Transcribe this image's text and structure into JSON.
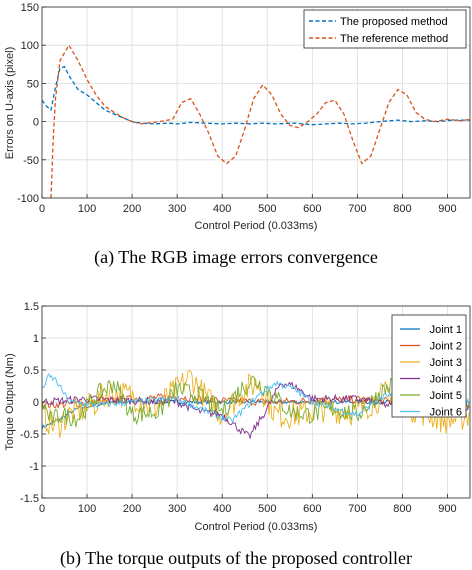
{
  "chart_data": [
    {
      "type": "line",
      "caption": "(a) The RGB image errors convergence",
      "xlabel": "Control Period (0.033ms)",
      "ylabel": "Errors on U-axis (pixel)",
      "xlim": [
        0,
        950
      ],
      "ylim": [
        -100,
        150
      ],
      "xticks": [
        0,
        100,
        200,
        300,
        400,
        500,
        600,
        700,
        800,
        900
      ],
      "yticks": [
        -100,
        -50,
        0,
        50,
        100,
        150
      ],
      "grid": true,
      "legend_position": "top-right",
      "series": [
        {
          "name": "The proposed method",
          "color": "#0072BD",
          "style": "dashed",
          "points": [
            [
              0,
              28
            ],
            [
              10,
              20
            ],
            [
              20,
              15
            ],
            [
              30,
              45
            ],
            [
              40,
              70
            ],
            [
              50,
              72
            ],
            [
              60,
              60
            ],
            [
              80,
              42
            ],
            [
              100,
              35
            ],
            [
              120,
              25
            ],
            [
              140,
              15
            ],
            [
              160,
              10
            ],
            [
              180,
              5
            ],
            [
              200,
              0
            ],
            [
              220,
              -2
            ],
            [
              250,
              -3
            ],
            [
              280,
              -2
            ],
            [
              300,
              -3
            ],
            [
              330,
              -1
            ],
            [
              360,
              -2
            ],
            [
              400,
              -3
            ],
            [
              430,
              -2
            ],
            [
              460,
              -3
            ],
            [
              490,
              -2
            ],
            [
              520,
              -3
            ],
            [
              560,
              -2
            ],
            [
              600,
              -4
            ],
            [
              630,
              -3
            ],
            [
              660,
              -2
            ],
            [
              690,
              -3
            ],
            [
              720,
              -2
            ],
            [
              750,
              0
            ],
            [
              790,
              2
            ],
            [
              820,
              0
            ],
            [
              850,
              1
            ],
            [
              880,
              0
            ],
            [
              910,
              2
            ],
            [
              940,
              2
            ],
            [
              950,
              2
            ]
          ]
        },
        {
          "name": "The reference method",
          "color": "#D95319",
          "style": "dashed",
          "points": [
            [
              20,
              -100
            ],
            [
              25,
              -20
            ],
            [
              30,
              30
            ],
            [
              40,
              80
            ],
            [
              60,
              100
            ],
            [
              80,
              80
            ],
            [
              100,
              55
            ],
            [
              120,
              35
            ],
            [
              140,
              20
            ],
            [
              160,
              12
            ],
            [
              180,
              5
            ],
            [
              200,
              0
            ],
            [
              220,
              -3
            ],
            [
              260,
              0
            ],
            [
              290,
              3
            ],
            [
              310,
              25
            ],
            [
              330,
              30
            ],
            [
              350,
              10
            ],
            [
              370,
              -15
            ],
            [
              390,
              -45
            ],
            [
              410,
              -55
            ],
            [
              430,
              -45
            ],
            [
              450,
              -10
            ],
            [
              470,
              30
            ],
            [
              490,
              48
            ],
            [
              510,
              35
            ],
            [
              530,
              10
            ],
            [
              550,
              -5
            ],
            [
              570,
              -8
            ],
            [
              590,
              0
            ],
            [
              610,
              10
            ],
            [
              630,
              25
            ],
            [
              650,
              28
            ],
            [
              670,
              10
            ],
            [
              690,
              -25
            ],
            [
              710,
              -55
            ],
            [
              730,
              -45
            ],
            [
              750,
              -10
            ],
            [
              770,
              25
            ],
            [
              790,
              42
            ],
            [
              810,
              35
            ],
            [
              830,
              12
            ],
            [
              850,
              3
            ],
            [
              870,
              0
            ],
            [
              900,
              3
            ],
            [
              930,
              1
            ],
            [
              950,
              3
            ]
          ]
        }
      ]
    },
    {
      "type": "line",
      "caption": "(b) The torque outputs of the proposed controller",
      "xlabel": "Control Period (0.033ms)",
      "ylabel": "Torque Output (Nm)",
      "xlim": [
        0,
        950
      ],
      "ylim": [
        -1.5,
        1.5
      ],
      "xticks": [
        0,
        100,
        200,
        300,
        400,
        500,
        600,
        700,
        800,
        900
      ],
      "yticks": [
        -1.5,
        -1,
        -0.5,
        0,
        0.5,
        1,
        1.5
      ],
      "grid": true,
      "legend_position": "top-right",
      "series": [
        {
          "name": "Joint 1",
          "color": "#0072BD",
          "base": [
            [
              0,
              -0.4
            ],
            [
              30,
              -0.3
            ],
            [
              80,
              -0.1
            ],
            [
              150,
              0.0
            ],
            [
              300,
              0.0
            ],
            [
              600,
              0.0
            ],
            [
              950,
              0.0
            ]
          ],
          "amp": 0.03
        },
        {
          "name": "Joint 2",
          "color": "#D95319",
          "base": [
            [
              0,
              -0.05
            ],
            [
              100,
              -0.02
            ],
            [
              200,
              0.05
            ],
            [
              300,
              0.08
            ],
            [
              400,
              0.02
            ],
            [
              500,
              0.0
            ],
            [
              600,
              0.02
            ],
            [
              700,
              0.04
            ],
            [
              800,
              0.0
            ],
            [
              950,
              -0.05
            ]
          ],
          "amp": 0.06
        },
        {
          "name": "Joint 3",
          "color": "#EDB120",
          "base": [
            [
              0,
              -0.2
            ],
            [
              30,
              -0.4
            ],
            [
              60,
              -0.2
            ],
            [
              100,
              -0.1
            ],
            [
              150,
              0.15
            ],
            [
              200,
              0.1
            ],
            [
              250,
              -0.1
            ],
            [
              300,
              0.2
            ],
            [
              330,
              0.4
            ],
            [
              360,
              0.1
            ],
            [
              400,
              -0.2
            ],
            [
              450,
              0.2
            ],
            [
              480,
              0.3
            ],
            [
              520,
              -0.2
            ],
            [
              570,
              -0.2
            ],
            [
              620,
              -0.1
            ],
            [
              700,
              -0.15
            ],
            [
              780,
              0.2
            ],
            [
              820,
              -0.1
            ],
            [
              860,
              -0.2
            ],
            [
              900,
              -0.3
            ],
            [
              950,
              -0.2
            ]
          ],
          "amp": 0.22
        },
        {
          "name": "Joint 4",
          "color": "#7E2F8E",
          "base": [
            [
              0,
              0.0
            ],
            [
              100,
              0.05
            ],
            [
              200,
              0.02
            ],
            [
              300,
              0.0
            ],
            [
              350,
              -0.15
            ],
            [
              400,
              -0.2
            ],
            [
              460,
              -0.55
            ],
            [
              500,
              -0.1
            ],
            [
              530,
              0.3
            ],
            [
              560,
              0.25
            ],
            [
              600,
              0.05
            ],
            [
              700,
              0.05
            ],
            [
              800,
              -0.1
            ],
            [
              950,
              -0.1
            ]
          ],
          "amp": 0.06
        },
        {
          "name": "Joint 5",
          "color": "#77AC30",
          "base": [
            [
              0,
              0.0
            ],
            [
              20,
              -0.3
            ],
            [
              40,
              -0.2
            ],
            [
              80,
              -0.25
            ],
            [
              120,
              0.1
            ],
            [
              160,
              0.3
            ],
            [
              200,
              -0.2
            ],
            [
              260,
              -0.15
            ],
            [
              300,
              0.2
            ],
            [
              350,
              0.1
            ],
            [
              400,
              -0.15
            ],
            [
              440,
              0.2
            ],
            [
              470,
              0.35
            ],
            [
              500,
              0.2
            ],
            [
              550,
              -0.15
            ],
            [
              600,
              -0.2
            ],
            [
              650,
              -0.1
            ],
            [
              700,
              -0.2
            ],
            [
              760,
              0.2
            ],
            [
              790,
              0.3
            ],
            [
              830,
              0.0
            ],
            [
              950,
              -0.05
            ]
          ],
          "amp": 0.15
        },
        {
          "name": "Joint 6",
          "color": "#4DBEEE",
          "base": [
            [
              0,
              0.2
            ],
            [
              15,
              0.4
            ],
            [
              30,
              0.35
            ],
            [
              60,
              0.0
            ],
            [
              120,
              -0.05
            ],
            [
              200,
              0.0
            ],
            [
              300,
              0.05
            ],
            [
              350,
              -0.1
            ],
            [
              420,
              -0.3
            ],
            [
              480,
              0.1
            ],
            [
              520,
              0.3
            ],
            [
              560,
              0.2
            ],
            [
              600,
              0.0
            ],
            [
              650,
              -0.1
            ],
            [
              700,
              -0.2
            ],
            [
              760,
              0.1
            ],
            [
              800,
              0.1
            ],
            [
              850,
              0.0
            ],
            [
              950,
              0.0
            ]
          ],
          "amp": 0.05
        }
      ]
    }
  ]
}
